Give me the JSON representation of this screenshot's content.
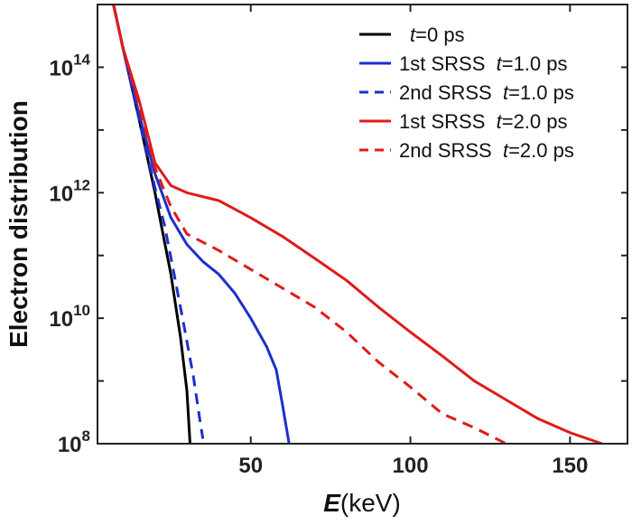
{
  "chart_data": {
    "type": "line",
    "xlabel_var": "E",
    "xlabel_unit": "(keV)",
    "ylabel": "Electron distribution",
    "xlim": [
      2,
      168
    ],
    "ylim": [
      100000000.0,
      1000000000000000.0
    ],
    "y_scale": "log",
    "x_ticks": [
      50,
      100,
      150
    ],
    "y_ticks": [
      {
        "value": 100000000.0,
        "base": "10",
        "exp": "8"
      },
      {
        "value": 10000000000.0,
        "base": "10",
        "exp": "10"
      },
      {
        "value": 1000000000000.0,
        "base": "10",
        "exp": "12"
      },
      {
        "value": 100000000000000.0,
        "base": "10",
        "exp": "14"
      }
    ],
    "legend_position": "top-right",
    "series": [
      {
        "name_prefix": "",
        "name_var": "t",
        "name_value": "=0 ps",
        "color": "#000000",
        "dash": "solid",
        "points": [
          [
            7,
            1000000000000000.0
          ],
          [
            10,
            200000000000000.0
          ],
          [
            15,
            15000000000000.0
          ],
          [
            20,
            1000000000000.0
          ],
          [
            22,
            300000000000.0
          ],
          [
            25,
            50000000000.0
          ],
          [
            28,
            5000000000.0
          ],
          [
            30,
            700000000.0
          ],
          [
            31,
            100000000.0
          ]
        ]
      },
      {
        "name_prefix": "1st SRSS  ",
        "name_var": "t",
        "name_value": "=1.0 ps",
        "color": "#1f2ecc",
        "dash": "solid",
        "points": [
          [
            7,
            1000000000000000.0
          ],
          [
            10,
            200000000000000.0
          ],
          [
            15,
            18000000000000.0
          ],
          [
            20,
            2000000000000.0
          ],
          [
            25,
            400000000000.0
          ],
          [
            30,
            150000000000.0
          ],
          [
            35,
            80000000000.0
          ],
          [
            40,
            50000000000.0
          ],
          [
            45,
            25000000000.0
          ],
          [
            50,
            10000000000.0
          ],
          [
            55,
            3500000000.0
          ],
          [
            58,
            1500000000.0
          ],
          [
            60,
            400000000.0
          ],
          [
            62,
            100000000.0
          ]
        ]
      },
      {
        "name_prefix": "2nd SRSS  ",
        "name_var": "t",
        "name_value": "=1.0 ps",
        "color": "#1f2ecc",
        "dash": "dashed",
        "points": [
          [
            7,
            1000000000000000.0
          ],
          [
            10,
            200000000000000.0
          ],
          [
            15,
            15000000000000.0
          ],
          [
            20,
            1200000000000.0
          ],
          [
            23,
            300000000000.0
          ],
          [
            26,
            50000000000.0
          ],
          [
            29,
            8000000000.0
          ],
          [
            32,
            1200000000.0
          ],
          [
            34,
            250000000.0
          ],
          [
            35,
            120000000.0
          ]
        ]
      },
      {
        "name_prefix": "1st SRSS  ",
        "name_var": "t",
        "name_value": "=2.0 ps",
        "color": "#e01b1b",
        "dash": "solid",
        "points": [
          [
            7,
            1000000000000000.0
          ],
          [
            10,
            200000000000000.0
          ],
          [
            15,
            30000000000000.0
          ],
          [
            20,
            3000000000000.0
          ],
          [
            25,
            1300000000000.0
          ],
          [
            30,
            1000000000000.0
          ],
          [
            40,
            750000000000.0
          ],
          [
            50,
            400000000000.0
          ],
          [
            60,
            200000000000.0
          ],
          [
            70,
            90000000000.0
          ],
          [
            80,
            40000000000.0
          ],
          [
            90,
            15000000000.0
          ],
          [
            100,
            6000000000.0
          ],
          [
            110,
            2500000000.0
          ],
          [
            120,
            1000000000.0
          ],
          [
            130,
            500000000.0
          ],
          [
            140,
            250000000.0
          ],
          [
            150,
            150000000.0
          ],
          [
            160,
            100000000.0
          ]
        ]
      },
      {
        "name_prefix": "2nd SRSS  ",
        "name_var": "t",
        "name_value": "=2.0 ps",
        "color": "#e01b1b",
        "dash": "dashed",
        "points": [
          [
            7,
            1000000000000000.0
          ],
          [
            10,
            200000000000000.0
          ],
          [
            15,
            25000000000000.0
          ],
          [
            20,
            2500000000000.0
          ],
          [
            25,
            600000000000.0
          ],
          [
            30,
            220000000000.0
          ],
          [
            40,
            120000000000.0
          ],
          [
            50,
            60000000000.0
          ],
          [
            60,
            30000000000.0
          ],
          [
            70,
            15000000000.0
          ],
          [
            80,
            6000000000.0
          ],
          [
            90,
            2000000000.0
          ],
          [
            100,
            800000000.0
          ],
          [
            110,
            300000000.0
          ],
          [
            120,
            180000000.0
          ],
          [
            130,
            100000000.0
          ]
        ]
      }
    ]
  }
}
